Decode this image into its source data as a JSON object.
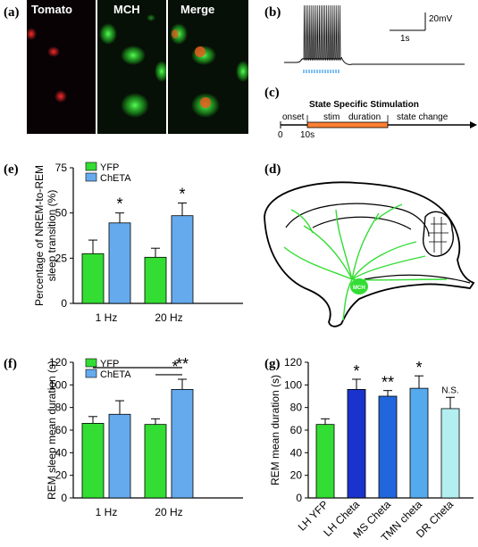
{
  "panels": {
    "a": "(a)",
    "b": "(b)",
    "c": "(c)",
    "d": "(d)",
    "e": "(e)",
    "f": "(f)",
    "g": "(g)"
  },
  "micro": {
    "tomato": "Tomato",
    "mch": "MCH",
    "merge": "Merge",
    "colors": {
      "tomato": "#ff2020",
      "mch": "#33ff33",
      "bg": "#0a0a0a"
    }
  },
  "trace": {
    "scale_mv": "20mV",
    "scale_s": "1s"
  },
  "protocol": {
    "title": "State Specific Stimulation",
    "onset": "onset",
    "stim": "stim",
    "duration": "duration",
    "state_change": "state change",
    "t0": "0",
    "t10": "10s"
  },
  "brain": {
    "label": "MCH"
  },
  "colors": {
    "yfp": "#33dd33",
    "cheta": "#66aaee",
    "lh_cheta": "#1a33cc",
    "ms_cheta": "#2266dd",
    "tmn_cheta": "#55aaee",
    "dr_cheta": "#b3eef0"
  },
  "chart_data": [
    {
      "id": "e",
      "type": "bar",
      "categories": [
        "1 Hz",
        "20 Hz"
      ],
      "series": [
        {
          "name": "YFP",
          "values": [
            27.5,
            25.5
          ],
          "errors": [
            7.5,
            5
          ]
        },
        {
          "name": "ChETA",
          "values": [
            44.5,
            48.5
          ],
          "errors": [
            5.5,
            7
          ]
        }
      ],
      "significance": [
        "*",
        "*"
      ],
      "ylabel": "Percentage of NREM-to-REM sleep transition (%)",
      "ylabel_lines": [
        "Percentage of NREM-to-REM",
        "sleep transition (%)"
      ],
      "yticks": [
        "0",
        "25",
        "50",
        "75"
      ],
      "ylim": [
        0,
        75
      ],
      "legend": "top-left"
    },
    {
      "id": "f",
      "type": "bar",
      "categories": [
        "1 Hz",
        "20 Hz"
      ],
      "series": [
        {
          "name": "YFP",
          "values": [
            66,
            65
          ],
          "errors": [
            6,
            5
          ]
        },
        {
          "name": "ChETA",
          "values": [
            74,
            96
          ],
          "errors": [
            12,
            9
          ]
        }
      ],
      "significance_brackets": [
        "**",
        "*"
      ],
      "ylabel": "REM sleep mean duration (s)",
      "yticks": [
        "0",
        "20",
        "40",
        "60",
        "80",
        "100",
        "120"
      ],
      "ylim": [
        0,
        120
      ],
      "legend": "top-left"
    },
    {
      "id": "g",
      "type": "bar",
      "categories": [
        "LH YFP",
        "LH Cheta",
        "MS Cheta",
        "TMN cheta",
        "DR Cheta"
      ],
      "values": [
        65,
        96,
        90,
        97,
        79
      ],
      "errors": [
        5,
        9,
        5,
        11,
        10
      ],
      "significance": [
        "",
        "*",
        "**",
        "*",
        "N.S."
      ],
      "ylabel": "REM mean duration (s)",
      "yticks": [
        "0",
        "20",
        "40",
        "60",
        "80",
        "100",
        "120"
      ],
      "ylim": [
        0,
        120
      ]
    }
  ]
}
